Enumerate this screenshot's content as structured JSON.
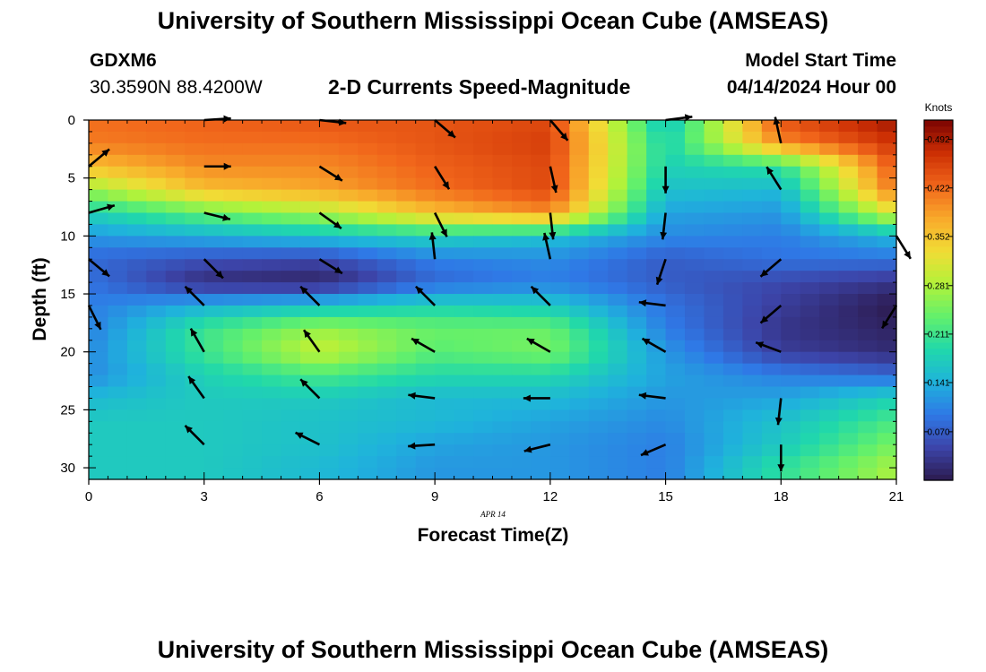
{
  "header": {
    "title": "University of Southern Mississippi Ocean Cube (AMSEAS)",
    "station_id": "GDXM6",
    "station_coords": "30.3590N  88.4200W",
    "plot_name": "2-D Currents Speed-Magnitude",
    "model_start_label": "Model Start Time",
    "model_start_value": "04/14/2024 Hour 00"
  },
  "footer": {
    "title": "University of Southern Mississippi Ocean Cube (AMSEAS)"
  },
  "colors": {
    "colormap": [
      "#2c1a4e",
      "#3c44a8",
      "#2f78e6",
      "#1fb2dc",
      "#20d8ab",
      "#62f06c",
      "#b2f23a",
      "#f1dc35",
      "#f8aa2b",
      "#f1661b",
      "#cc2f04",
      "#7c0402"
    ]
  },
  "chart_data": {
    "type": "heatmap",
    "title": "2-D Currents Speed-Magnitude",
    "xlabel": "Forecast Time(Z)",
    "ylabel": "Depth (ft)",
    "date_label": "APR 14",
    "colorbar_label": "Knots",
    "x_ticks": [
      "0",
      "3",
      "6",
      "9",
      "12",
      "15",
      "18",
      "21"
    ],
    "y_ticks": [
      "0",
      "5",
      "10",
      "15",
      "20",
      "25",
      "30"
    ],
    "xlim": [
      0,
      21
    ],
    "ylim": [
      0,
      31
    ],
    "colorbar_ticks": [
      "0.070",
      "0.141",
      "0.211",
      "0.281",
      "0.352",
      "0.422",
      "0.492"
    ],
    "colorbar_range": [
      0.0,
      0.52
    ],
    "x_resolution_hours": 0.5,
    "depth_resolution_ft": 1,
    "speed_field_knots": {
      "times": [
        0,
        3,
        6,
        9,
        12,
        15,
        18,
        21
      ],
      "depths": [
        0,
        2,
        4,
        6,
        8,
        10,
        12,
        14,
        16,
        18,
        20,
        22,
        24,
        26,
        28,
        30
      ],
      "values": [
        [
          0.42,
          0.43,
          0.44,
          0.44,
          0.45,
          0.16,
          0.44,
          0.5
        ],
        [
          0.41,
          0.42,
          0.42,
          0.44,
          0.46,
          0.18,
          0.4,
          0.47
        ],
        [
          0.36,
          0.4,
          0.4,
          0.43,
          0.45,
          0.18,
          0.2,
          0.44
        ],
        [
          0.27,
          0.36,
          0.38,
          0.42,
          0.45,
          0.16,
          0.15,
          0.42
        ],
        [
          0.18,
          0.24,
          0.28,
          0.36,
          0.4,
          0.13,
          0.12,
          0.32
        ],
        [
          0.12,
          0.14,
          0.16,
          0.18,
          0.16,
          0.11,
          0.1,
          0.15
        ],
        [
          0.08,
          0.06,
          0.05,
          0.1,
          0.11,
          0.07,
          0.09,
          0.09
        ],
        [
          0.09,
          0.02,
          0.01,
          0.08,
          0.1,
          0.07,
          0.05,
          0.03
        ],
        [
          0.1,
          0.14,
          0.16,
          0.18,
          0.17,
          0.09,
          0.04,
          0.0
        ],
        [
          0.1,
          0.21,
          0.27,
          0.24,
          0.24,
          0.1,
          0.03,
          0.01
        ],
        [
          0.11,
          0.21,
          0.3,
          0.23,
          0.25,
          0.12,
          0.04,
          0.02
        ],
        [
          0.11,
          0.18,
          0.22,
          0.19,
          0.19,
          0.13,
          0.1,
          0.08
        ],
        [
          0.15,
          0.17,
          0.17,
          0.15,
          0.15,
          0.12,
          0.13,
          0.18
        ],
        [
          0.17,
          0.17,
          0.16,
          0.15,
          0.13,
          0.11,
          0.16,
          0.22
        ],
        [
          0.17,
          0.17,
          0.16,
          0.13,
          0.12,
          0.1,
          0.17,
          0.25
        ],
        [
          0.17,
          0.17,
          0.15,
          0.12,
          0.12,
          0.1,
          0.2,
          0.28
        ]
      ]
    },
    "vectors": [
      {
        "t": 0,
        "d": 4,
        "u": 0.6,
        "v": 0.5
      },
      {
        "t": 0,
        "d": 8,
        "u": 0.7,
        "v": 0.2
      },
      {
        "t": 0,
        "d": 12,
        "u": 0.6,
        "v": -0.5
      },
      {
        "t": 0,
        "d": 16,
        "u": 0.4,
        "v": -0.8
      },
      {
        "t": 3,
        "d": 0,
        "u": 0.8,
        "v": 0.05
      },
      {
        "t": 3,
        "d": 4,
        "u": 0.8,
        "v": 0.0
      },
      {
        "t": 3,
        "d": 8,
        "u": 0.8,
        "v": -0.2
      },
      {
        "t": 3,
        "d": 12,
        "u": 0.6,
        "v": -0.6
      },
      {
        "t": 3,
        "d": 16,
        "u": -0.6,
        "v": 0.6
      },
      {
        "t": 3,
        "d": 20,
        "u": -0.4,
        "v": 0.7
      },
      {
        "t": 3,
        "d": 24,
        "u": -0.5,
        "v": 0.7
      },
      {
        "t": 3,
        "d": 28,
        "u": -0.6,
        "v": 0.6
      },
      {
        "t": 6,
        "d": 0,
        "u": 0.9,
        "v": -0.1
      },
      {
        "t": 6,
        "d": 4,
        "u": 0.8,
        "v": -0.5
      },
      {
        "t": 6,
        "d": 8,
        "u": 0.7,
        "v": -0.5
      },
      {
        "t": 6,
        "d": 12,
        "u": 0.8,
        "v": -0.5
      },
      {
        "t": 6,
        "d": 16,
        "u": -0.6,
        "v": 0.6
      },
      {
        "t": 6,
        "d": 20,
        "u": -0.5,
        "v": 0.7
      },
      {
        "t": 6,
        "d": 24,
        "u": -0.6,
        "v": 0.6
      },
      {
        "t": 6,
        "d": 28,
        "u": -0.8,
        "v": 0.4
      },
      {
        "t": 9,
        "d": 0,
        "u": 0.7,
        "v": -0.6
      },
      {
        "t": 9,
        "d": 4,
        "u": 0.5,
        "v": -0.8
      },
      {
        "t": 9,
        "d": 8,
        "u": 0.4,
        "v": -0.8
      },
      {
        "t": 9,
        "d": 12,
        "u": -0.1,
        "v": 0.9
      },
      {
        "t": 9,
        "d": 16,
        "u": -0.6,
        "v": 0.6
      },
      {
        "t": 9,
        "d": 20,
        "u": -0.7,
        "v": 0.4
      },
      {
        "t": 9,
        "d": 24,
        "u": -0.8,
        "v": 0.1
      },
      {
        "t": 9,
        "d": 28,
        "u": -0.8,
        "v": -0.05
      },
      {
        "t": 12,
        "d": 0,
        "u": 0.6,
        "v": -0.7
      },
      {
        "t": 12,
        "d": 4,
        "u": 0.2,
        "v": -0.9
      },
      {
        "t": 12,
        "d": 8,
        "u": 0.1,
        "v": -0.9
      },
      {
        "t": 12,
        "d": 12,
        "u": -0.2,
        "v": 0.9
      },
      {
        "t": 12,
        "d": 16,
        "u": -0.6,
        "v": 0.6
      },
      {
        "t": 12,
        "d": 20,
        "u": -0.7,
        "v": 0.4
      },
      {
        "t": 12,
        "d": 24,
        "u": -0.8,
        "v": 0.0
      },
      {
        "t": 12,
        "d": 28,
        "u": -0.8,
        "v": -0.2
      },
      {
        "t": 15,
        "d": 0,
        "u": 0.8,
        "v": 0.1
      },
      {
        "t": 15,
        "d": 4,
        "u": 0.0,
        "v": -0.9
      },
      {
        "t": 15,
        "d": 8,
        "u": -0.1,
        "v": -0.9
      },
      {
        "t": 15,
        "d": 12,
        "u": -0.3,
        "v": -0.9
      },
      {
        "t": 15,
        "d": 16,
        "u": -0.8,
        "v": 0.1
      },
      {
        "t": 15,
        "d": 20,
        "u": -0.7,
        "v": 0.4
      },
      {
        "t": 15,
        "d": 24,
        "u": -0.8,
        "v": 0.1
      },
      {
        "t": 15,
        "d": 28,
        "u": -0.7,
        "v": -0.3
      },
      {
        "t": 18,
        "d": 2,
        "u": -0.2,
        "v": 0.9
      },
      {
        "t": 18,
        "d": 6,
        "u": -0.5,
        "v": 0.8
      },
      {
        "t": 18,
        "d": 12,
        "u": -0.7,
        "v": -0.6
      },
      {
        "t": 18,
        "d": 16,
        "u": -0.7,
        "v": -0.6
      },
      {
        "t": 18,
        "d": 20,
        "u": -0.8,
        "v": 0.3
      },
      {
        "t": 18,
        "d": 24,
        "u": -0.1,
        "v": -0.9
      },
      {
        "t": 18,
        "d": 28,
        "u": 0.0,
        "v": -0.9
      },
      {
        "t": 21,
        "d": 10,
        "u": 0.5,
        "v": -0.8
      },
      {
        "t": 21,
        "d": 16,
        "u": -0.5,
        "v": -0.8
      }
    ]
  }
}
